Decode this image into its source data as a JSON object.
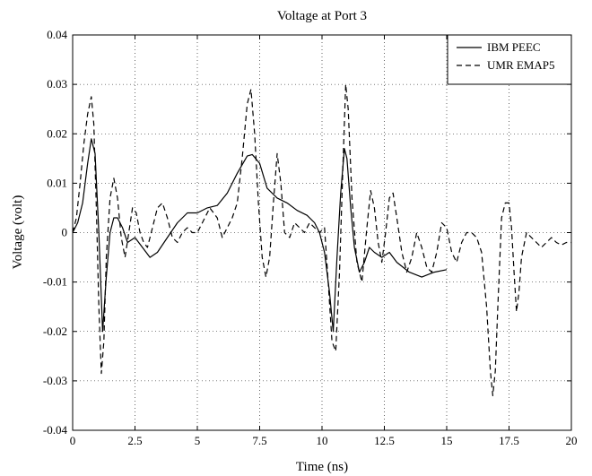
{
  "chart_data": {
    "type": "line",
    "title": "Voltage at Port 3",
    "xlabel": "Time (ns)",
    "ylabel": "Voltage (volt)",
    "xlim": [
      0,
      20
    ],
    "ylim": [
      -0.04,
      0.04
    ],
    "x_ticks": [
      0,
      2.5,
      5,
      7.5,
      10,
      12.5,
      15,
      17.5,
      20
    ],
    "x_tick_labels": [
      "0",
      "2.5",
      "5",
      "7.5",
      "10",
      "12.5",
      "15",
      "17.5",
      "20"
    ],
    "y_ticks": [
      -0.04,
      -0.03,
      -0.02,
      -0.01,
      0,
      0.01,
      0.02,
      0.03,
      0.04
    ],
    "y_tick_labels": [
      "-0.04",
      "-0.03",
      "-0.02",
      "-0.01",
      "0",
      "0.01",
      "0.02",
      "0.03",
      "0.04"
    ],
    "grid": true,
    "legend_position": "top-right",
    "series": [
      {
        "name": "IBM  PEEC",
        "style": "solid",
        "color": "#000000",
        "x": [
          0,
          0.2,
          0.4,
          0.6,
          0.75,
          0.9,
          1.05,
          1.2,
          1.35,
          1.5,
          1.65,
          1.8,
          2.0,
          2.2,
          2.5,
          2.8,
          3.1,
          3.4,
          3.8,
          4.2,
          4.6,
          5.0,
          5.4,
          5.8,
          6.2,
          6.6,
          7.0,
          7.2,
          7.5,
          7.8,
          8.2,
          8.6,
          9.0,
          9.4,
          9.7,
          9.9,
          10.1,
          10.3,
          10.45,
          10.6,
          10.75,
          10.9,
          11.0,
          11.15,
          11.3,
          11.5,
          11.7,
          11.9,
          12.1,
          12.4,
          12.7,
          13.0,
          13.5,
          14.0,
          14.5,
          15.0
        ],
        "values": [
          0.0,
          0.002,
          0.006,
          0.014,
          0.019,
          0.016,
          0.0,
          -0.02,
          -0.009,
          0.0,
          0.003,
          0.003,
          0.001,
          -0.002,
          -0.001,
          -0.003,
          -0.005,
          -0.004,
          -0.001,
          0.002,
          0.004,
          0.004,
          0.005,
          0.0055,
          0.008,
          0.012,
          0.0155,
          0.0158,
          0.014,
          0.009,
          0.007,
          0.006,
          0.0045,
          0.0035,
          0.002,
          0.0,
          -0.004,
          -0.012,
          -0.02,
          -0.005,
          0.008,
          0.017,
          0.015,
          0.005,
          -0.003,
          -0.008,
          -0.006,
          -0.003,
          -0.004,
          -0.005,
          -0.004,
          -0.006,
          -0.008,
          -0.009,
          -0.008,
          -0.0075
        ]
      },
      {
        "name": "UMR EMAP5",
        "style": "dashed",
        "color": "#000000",
        "x": [
          0,
          0.15,
          0.3,
          0.45,
          0.6,
          0.75,
          0.85,
          0.95,
          1.05,
          1.15,
          1.25,
          1.35,
          1.5,
          1.65,
          1.8,
          1.95,
          2.1,
          2.25,
          2.4,
          2.55,
          2.7,
          2.85,
          3.0,
          3.2,
          3.4,
          3.6,
          3.8,
          4.0,
          4.2,
          4.4,
          4.6,
          4.8,
          5.0,
          5.2,
          5.5,
          5.8,
          6.0,
          6.2,
          6.4,
          6.6,
          6.8,
          7.0,
          7.15,
          7.3,
          7.45,
          7.6,
          7.75,
          7.9,
          8.05,
          8.2,
          8.35,
          8.5,
          8.7,
          8.9,
          9.1,
          9.3,
          9.5,
          9.7,
          9.9,
          10.1,
          10.25,
          10.4,
          10.55,
          10.7,
          10.85,
          10.95,
          11.05,
          11.2,
          11.4,
          11.6,
          11.8,
          11.95,
          12.1,
          12.25,
          12.4,
          12.55,
          12.7,
          12.85,
          13.0,
          13.2,
          13.4,
          13.6,
          13.8,
          14.0,
          14.2,
          14.4,
          14.6,
          14.8,
          15.0,
          15.2,
          15.4,
          15.6,
          15.8,
          16.0,
          16.2,
          16.4,
          16.6,
          16.75,
          16.85,
          16.95,
          17.05,
          17.2,
          17.35,
          17.5,
          17.6,
          17.7,
          17.8,
          17.9,
          18.0,
          18.2,
          18.4,
          18.6,
          18.8,
          19.0,
          19.2,
          19.4,
          19.6,
          19.8,
          20.0
        ],
        "values": [
          0.0,
          0.003,
          0.01,
          0.018,
          0.024,
          0.0275,
          0.022,
          0.005,
          -0.015,
          -0.0285,
          -0.022,
          -0.005,
          0.007,
          0.011,
          0.007,
          -0.001,
          -0.005,
          0.0,
          0.005,
          0.004,
          0.0,
          -0.002,
          -0.003,
          0.001,
          0.005,
          0.006,
          0.003,
          -0.001,
          -0.002,
          0.0,
          0.001,
          0.0,
          0.0,
          0.002,
          0.005,
          0.003,
          -0.001,
          0.001,
          0.003,
          0.006,
          0.015,
          0.026,
          0.029,
          0.02,
          0.006,
          -0.005,
          -0.009,
          -0.005,
          0.006,
          0.016,
          0.01,
          0.0,
          -0.001,
          0.002,
          0.001,
          0.0,
          0.002,
          0.001,
          0.0,
          0.001,
          -0.01,
          -0.022,
          -0.024,
          -0.008,
          0.015,
          0.03,
          0.025,
          0.007,
          -0.006,
          -0.01,
          0.001,
          0.0085,
          0.005,
          -0.002,
          -0.006,
          0.0,
          0.007,
          0.008,
          0.003,
          -0.004,
          -0.008,
          -0.005,
          0.0,
          -0.003,
          -0.007,
          -0.008,
          -0.004,
          0.002,
          0.001,
          -0.004,
          -0.006,
          -0.002,
          0.0,
          0.0,
          -0.001,
          -0.004,
          -0.015,
          -0.028,
          -0.033,
          -0.028,
          -0.015,
          0.003,
          0.006,
          0.006,
          0.001,
          -0.008,
          -0.016,
          -0.012,
          -0.005,
          0.0,
          -0.001,
          -0.002,
          -0.003,
          -0.002,
          -0.001,
          -0.002,
          -0.0025,
          -0.002,
          -0.002
        ]
      }
    ]
  }
}
